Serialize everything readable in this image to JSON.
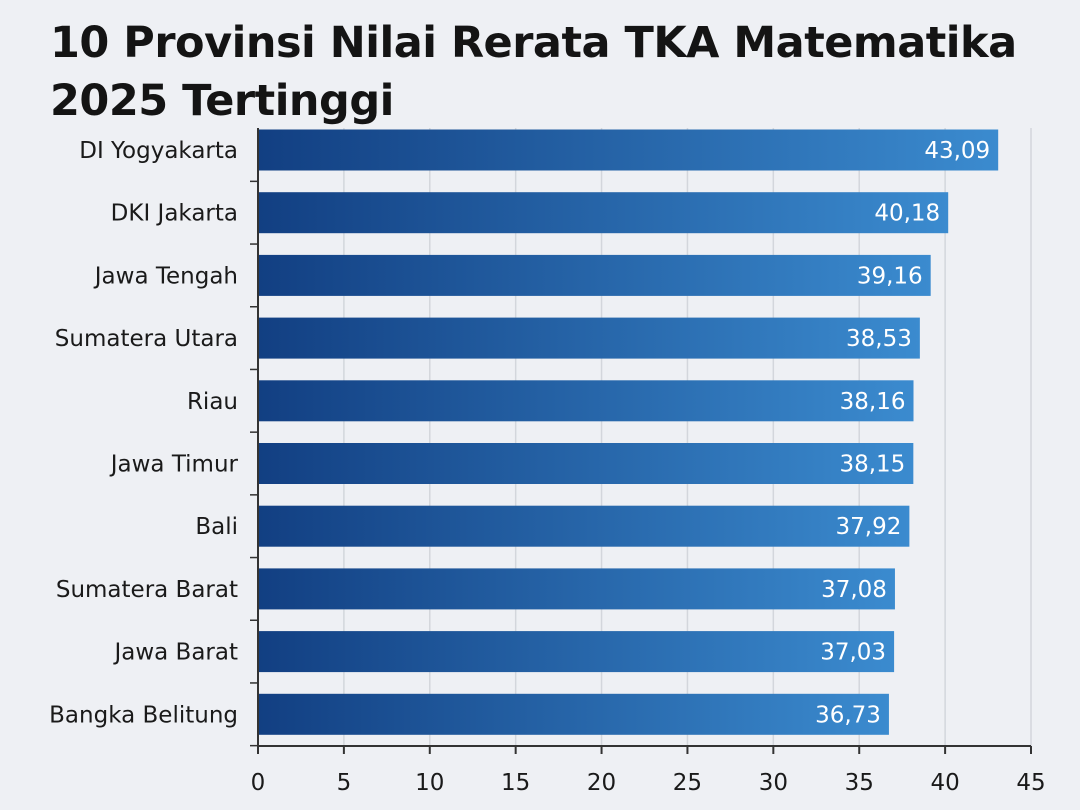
{
  "chart_data": {
    "type": "bar",
    "orientation": "horizontal",
    "title": "10 Provinsi Nilai Rerata TKA Matematika 2025 Tertinggi",
    "categories": [
      "DI Yogyakarta",
      "DKI Jakarta",
      "Jawa Tengah",
      "Sumatera Utara",
      "Riau",
      "Jawa Timur",
      "Bali",
      "Sumatera Barat",
      "Jawa Barat",
      "Bangka Belitung"
    ],
    "values": [
      43.09,
      40.18,
      39.16,
      38.53,
      38.16,
      38.15,
      37.92,
      37.08,
      37.03,
      36.73
    ],
    "value_labels": [
      "43,09",
      "40,18",
      "39,16",
      "38,53",
      "38,16",
      "38,15",
      "37,92",
      "37,08",
      "37,03",
      "36,73"
    ],
    "x_ticks": [
      "0",
      "5",
      "10",
      "15",
      "20",
      "25",
      "30",
      "35",
      "40",
      "45"
    ],
    "xlim": [
      0,
      45
    ],
    "grid": true,
    "legend": "none",
    "colors": {
      "bar_start": "#123f82",
      "bar_end": "#3b8bcf",
      "grid": "#d3d6dc",
      "axis": "#333333",
      "background": "#eef0f4"
    }
  }
}
